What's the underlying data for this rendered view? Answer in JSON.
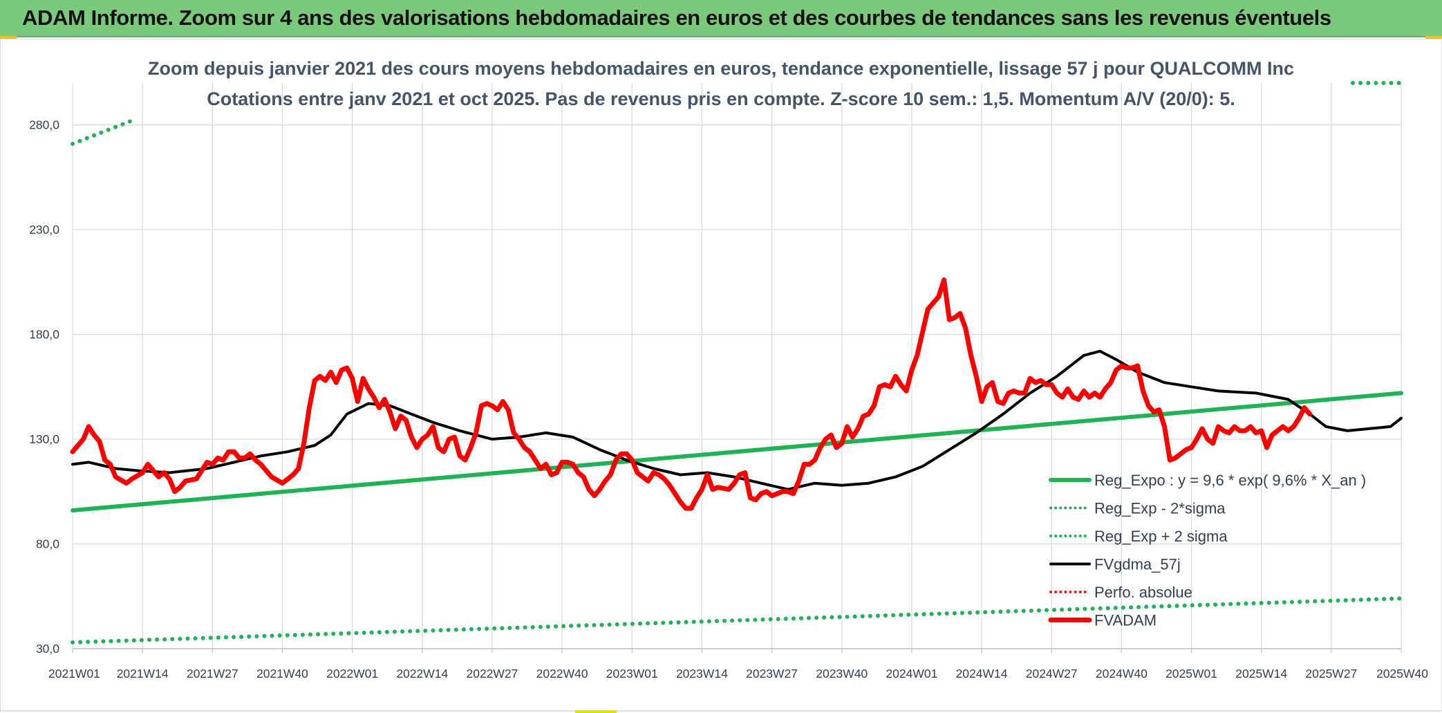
{
  "header": {
    "banner_title": "ADAM Informe. Zoom sur 4 ans des valorisations hebdomadaires en euros et des courbes de tendances sans les revenus éventuels"
  },
  "chart_data": {
    "type": "line",
    "title": "Zoom depuis janvier 2021 des cours moyens hebdomadaires en euros, tendance exponentielle, lissage 57 j pour QUALCOMM Inc",
    "subtitle": "Cotations entre janv 2021 et oct 2025. Pas de revenus pris en compte. Z-score 10 sem.: 1,5. Momentum A/V (20/0): 5.",
    "xlabel": "",
    "ylabel": "",
    "ylim": [
      30,
      300
    ],
    "yticks": [
      30,
      80,
      130,
      180,
      230,
      280
    ],
    "ytick_labels": [
      "30,0",
      "80,0",
      "130,0",
      "180,0",
      "230,0",
      "280,0"
    ],
    "x_tick_labels": [
      "2021W01",
      "2021W14",
      "2021W27",
      "2021W40",
      "2022W01",
      "2022W14",
      "2022W27",
      "2022W40",
      "2023W01",
      "2023W14",
      "2023W27",
      "2023W40",
      "2024W01",
      "2024W14",
      "2024W27",
      "2024W40",
      "2025W01",
      "2025W14",
      "2025W27",
      "2025W40"
    ],
    "weeks_between_ticks": 13,
    "grid": true,
    "legend_position": "bottom-right",
    "series": [
      {
        "name": "Reg_Expo : y = 9,6 * exp( 9,6% *  X_an )",
        "color": "#1fb257",
        "style": "solid",
        "knots": [
          [
            0,
            96
          ],
          [
            247,
            152
          ]
        ]
      },
      {
        "name": "Reg_Exp - 2*sigma",
        "color": "#1fb257",
        "style": "dotted",
        "knots": [
          [
            0,
            33
          ],
          [
            247,
            54
          ]
        ]
      },
      {
        "name": "Reg_Exp + 2 sigma",
        "color": "#1fb257",
        "style": "dotted",
        "knots": [
          [
            0,
            271
          ],
          [
            11,
            282
          ],
          [
            238,
            300
          ],
          [
            247,
            300
          ]
        ]
      },
      {
        "name": "FVgdma_57j",
        "color": "#000000",
        "style": "solid",
        "knots": [
          [
            0,
            118
          ],
          [
            3,
            119
          ],
          [
            8,
            116
          ],
          [
            12,
            115
          ],
          [
            18,
            114
          ],
          [
            25,
            116
          ],
          [
            30,
            119
          ],
          [
            35,
            122
          ],
          [
            40,
            124
          ],
          [
            45,
            127
          ],
          [
            48,
            132
          ],
          [
            51,
            142
          ],
          [
            55,
            147
          ],
          [
            59,
            146
          ],
          [
            63,
            142
          ],
          [
            67,
            138
          ],
          [
            72,
            134
          ],
          [
            78,
            130
          ],
          [
            83,
            131
          ],
          [
            88,
            133
          ],
          [
            93,
            131
          ],
          [
            98,
            125
          ],
          [
            103,
            120
          ],
          [
            108,
            116
          ],
          [
            113,
            113
          ],
          [
            118,
            114
          ],
          [
            123,
            112
          ],
          [
            128,
            109
          ],
          [
            133,
            106
          ],
          [
            138,
            109
          ],
          [
            143,
            108
          ],
          [
            148,
            109
          ],
          [
            153,
            112
          ],
          [
            158,
            117
          ],
          [
            163,
            125
          ],
          [
            168,
            133
          ],
          [
            173,
            142
          ],
          [
            178,
            152
          ],
          [
            183,
            160
          ],
          [
            188,
            170
          ],
          [
            191,
            172
          ],
          [
            194,
            168
          ],
          [
            198,
            162
          ],
          [
            203,
            157
          ],
          [
            208,
            155
          ],
          [
            213,
            153
          ],
          [
            220,
            152
          ],
          [
            226,
            149
          ],
          [
            230,
            142
          ],
          [
            233,
            136
          ],
          [
            237,
            134
          ],
          [
            241,
            135
          ],
          [
            245,
            136
          ],
          [
            247,
            140
          ]
        ]
      },
      {
        "name": "Perfo. absolue",
        "color": "#e02020",
        "style": "dotted",
        "knots": []
      },
      {
        "name": "FVADAM",
        "color": "#ff0000",
        "style": "solid",
        "knots": [
          [
            0,
            124
          ],
          [
            2,
            130
          ],
          [
            3,
            136
          ],
          [
            4,
            132
          ],
          [
            5,
            129
          ],
          [
            6,
            120
          ],
          [
            7,
            118
          ],
          [
            8,
            112
          ],
          [
            10,
            109
          ],
          [
            11,
            111
          ],
          [
            13,
            114
          ],
          [
            14,
            118
          ],
          [
            15,
            115
          ],
          [
            16,
            112
          ],
          [
            17,
            114
          ],
          [
            18,
            111
          ],
          [
            19,
            105
          ],
          [
            20,
            107
          ],
          [
            21,
            110
          ],
          [
            23,
            111
          ],
          [
            24,
            115
          ],
          [
            25,
            119
          ],
          [
            26,
            118
          ],
          [
            27,
            121
          ],
          [
            28,
            120
          ],
          [
            29,
            124
          ],
          [
            30,
            124
          ],
          [
            31,
            121
          ],
          [
            32,
            121
          ],
          [
            33,
            123
          ],
          [
            34,
            120
          ],
          [
            35,
            118
          ],
          [
            37,
            112
          ],
          [
            39,
            109
          ],
          [
            41,
            113
          ],
          [
            42,
            116
          ],
          [
            43,
            128
          ],
          [
            44,
            145
          ],
          [
            45,
            158
          ],
          [
            46,
            160
          ],
          [
            47,
            158
          ],
          [
            48,
            162
          ],
          [
            49,
            157
          ],
          [
            50,
            163
          ],
          [
            51,
            164
          ],
          [
            52,
            159
          ],
          [
            53,
            148
          ],
          [
            54,
            159
          ],
          [
            55,
            154
          ],
          [
            56,
            150
          ],
          [
            57,
            145
          ],
          [
            58,
            149
          ],
          [
            59,
            143
          ],
          [
            60,
            135
          ],
          [
            61,
            141
          ],
          [
            62,
            139
          ],
          [
            63,
            131
          ],
          [
            64,
            126
          ],
          [
            65,
            130
          ],
          [
            66,
            132
          ],
          [
            67,
            136
          ],
          [
            68,
            126
          ],
          [
            69,
            124
          ],
          [
            70,
            130
          ],
          [
            71,
            131
          ],
          [
            72,
            122
          ],
          [
            73,
            120
          ],
          [
            74,
            126
          ],
          [
            75,
            133
          ],
          [
            76,
            146
          ],
          [
            77,
            147
          ],
          [
            78,
            146
          ],
          [
            79,
            144
          ],
          [
            80,
            148
          ],
          [
            81,
            144
          ],
          [
            82,
            133
          ],
          [
            83,
            130
          ],
          [
            84,
            126
          ],
          [
            85,
            124
          ],
          [
            86,
            120
          ],
          [
            87,
            116
          ],
          [
            88,
            118
          ],
          [
            89,
            113
          ],
          [
            90,
            114
          ],
          [
            91,
            119
          ],
          [
            92,
            119
          ],
          [
            93,
            118
          ],
          [
            94,
            114
          ],
          [
            95,
            112
          ],
          [
            96,
            106
          ],
          [
            97,
            103
          ],
          [
            98,
            106
          ],
          [
            99,
            110
          ],
          [
            100,
            113
          ],
          [
            101,
            120
          ],
          [
            102,
            123
          ],
          [
            103,
            123
          ],
          [
            104,
            120
          ],
          [
            105,
            114
          ],
          [
            106,
            112
          ],
          [
            107,
            110
          ],
          [
            108,
            114
          ],
          [
            109,
            113
          ],
          [
            110,
            111
          ],
          [
            111,
            108
          ],
          [
            112,
            104
          ],
          [
            113,
            100
          ],
          [
            114,
            97
          ],
          [
            115,
            97
          ],
          [
            116,
            102
          ],
          [
            117,
            106
          ],
          [
            118,
            113
          ],
          [
            119,
            106
          ],
          [
            120,
            107
          ],
          [
            122,
            106
          ],
          [
            123,
            109
          ],
          [
            124,
            113
          ],
          [
            125,
            114
          ],
          [
            126,
            102
          ],
          [
            127,
            101
          ],
          [
            128,
            104
          ],
          [
            129,
            105
          ],
          [
            130,
            103
          ],
          [
            131,
            104
          ],
          [
            132,
            105
          ],
          [
            133,
            105
          ],
          [
            134,
            104
          ],
          [
            135,
            110
          ],
          [
            136,
            118
          ],
          [
            137,
            118
          ],
          [
            138,
            120
          ],
          [
            139,
            126
          ],
          [
            140,
            130
          ],
          [
            141,
            132
          ],
          [
            142,
            126
          ],
          [
            143,
            128
          ],
          [
            144,
            136
          ],
          [
            145,
            131
          ],
          [
            146,
            135
          ],
          [
            147,
            141
          ],
          [
            148,
            142
          ],
          [
            149,
            146
          ],
          [
            150,
            155
          ],
          [
            151,
            156
          ],
          [
            152,
            155
          ],
          [
            153,
            160
          ],
          [
            154,
            156
          ],
          [
            155,
            153
          ],
          [
            156,
            163
          ],
          [
            157,
            170
          ],
          [
            158,
            181
          ],
          [
            159,
            192
          ],
          [
            160,
            195
          ],
          [
            161,
            198
          ],
          [
            162,
            206
          ],
          [
            163,
            187
          ],
          [
            164,
            188
          ],
          [
            165,
            190
          ],
          [
            166,
            183
          ],
          [
            167,
            170
          ],
          [
            168,
            160
          ],
          [
            169,
            148
          ],
          [
            170,
            155
          ],
          [
            171,
            157
          ],
          [
            172,
            148
          ],
          [
            173,
            147
          ],
          [
            174,
            152
          ],
          [
            175,
            153
          ],
          [
            176,
            152
          ],
          [
            177,
            152
          ],
          [
            178,
            159
          ],
          [
            179,
            157
          ],
          [
            180,
            158
          ],
          [
            181,
            156
          ],
          [
            182,
            156
          ],
          [
            183,
            152
          ],
          [
            184,
            150
          ],
          [
            185,
            154
          ],
          [
            186,
            150
          ],
          [
            187,
            149
          ],
          [
            188,
            153
          ],
          [
            189,
            150
          ],
          [
            190,
            152
          ],
          [
            191,
            150
          ],
          [
            192,
            154
          ],
          [
            193,
            157
          ],
          [
            194,
            163
          ],
          [
            195,
            165
          ],
          [
            196,
            164
          ],
          [
            197,
            164
          ],
          [
            198,
            165
          ],
          [
            199,
            153
          ],
          [
            200,
            146
          ],
          [
            201,
            143
          ],
          [
            202,
            144
          ],
          [
            203,
            136
          ],
          [
            204,
            120
          ],
          [
            205,
            121
          ],
          [
            206,
            123
          ],
          [
            207,
            125
          ],
          [
            208,
            126
          ],
          [
            209,
            130
          ],
          [
            210,
            135
          ],
          [
            211,
            130
          ],
          [
            212,
            128
          ],
          [
            213,
            136
          ],
          [
            214,
            134
          ],
          [
            215,
            133
          ],
          [
            216,
            136
          ],
          [
            217,
            134
          ],
          [
            218,
            134
          ],
          [
            219,
            136
          ],
          [
            220,
            133
          ],
          [
            221,
            134
          ],
          [
            222,
            126
          ],
          [
            223,
            132
          ],
          [
            224,
            134
          ],
          [
            225,
            136
          ],
          [
            226,
            134
          ],
          [
            227,
            136
          ],
          [
            228,
            140
          ],
          [
            229,
            145
          ],
          [
            230,
            142
          ]
        ]
      }
    ]
  }
}
